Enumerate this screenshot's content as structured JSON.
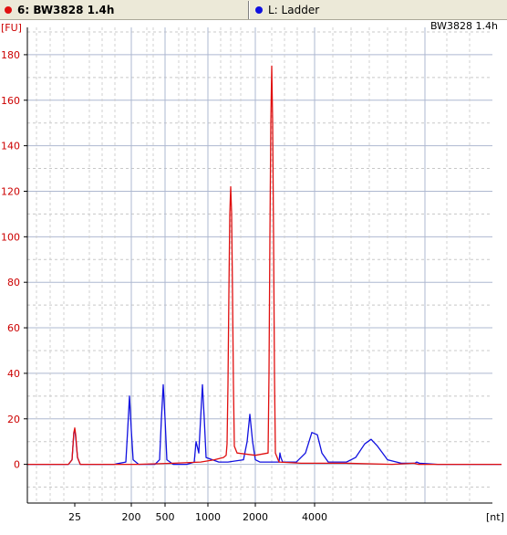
{
  "legend": {
    "sample": {
      "label": "6: BW3828 1.4h",
      "color": "#e01010"
    },
    "ladder": {
      "label": "L: Ladder",
      "color": "#1010e0"
    }
  },
  "chart_data": {
    "type": "line",
    "title": "BW3828 1.4h",
    "ylabel": "[FU]",
    "xlabel": "[nt]",
    "ylim": [
      -17,
      192
    ],
    "yticks": [
      0,
      20,
      40,
      60,
      80,
      100,
      120,
      140,
      160,
      180
    ],
    "xticks": [
      "25",
      "200",
      "500",
      "1000",
      "2000",
      "4000"
    ],
    "grid": true,
    "series": [
      {
        "name": "6: BW3828 1.4h",
        "color": "#e01010",
        "points": [
          [
            0,
            0
          ],
          [
            45,
            0
          ],
          [
            49,
            2
          ],
          [
            51,
            14
          ],
          [
            52,
            16
          ],
          [
            53,
            13
          ],
          [
            55,
            3
          ],
          [
            58,
            0
          ],
          [
            120,
            0
          ],
          [
            160,
            0.5
          ],
          [
            190,
            1
          ],
          [
            205,
            2
          ],
          [
            215,
            3
          ],
          [
            218,
            4
          ],
          [
            219,
            9
          ],
          [
            220,
            35
          ],
          [
            221,
            75
          ],
          [
            222,
            110
          ],
          [
            223,
            122
          ],
          [
            224,
            110
          ],
          [
            225,
            75
          ],
          [
            226,
            35
          ],
          [
            227,
            8
          ],
          [
            230,
            5
          ],
          [
            250,
            4
          ],
          [
            264,
            5
          ],
          [
            265,
            40
          ],
          [
            266,
            100
          ],
          [
            267,
            150
          ],
          [
            268,
            175
          ],
          [
            269,
            150
          ],
          [
            270,
            100
          ],
          [
            271,
            40
          ],
          [
            272,
            5
          ],
          [
            276,
            1
          ],
          [
            300,
            0.5
          ],
          [
            350,
            0.5
          ],
          [
            400,
            0
          ],
          [
            424,
            0.5
          ],
          [
            429,
            0
          ],
          [
            520,
            0
          ]
        ]
      },
      {
        "name": "L: Ladder",
        "color": "#1010e0",
        "points": [
          [
            0,
            0
          ],
          [
            45,
            0
          ],
          [
            49,
            2
          ],
          [
            51,
            14
          ],
          [
            52,
            15
          ],
          [
            53,
            12
          ],
          [
            55,
            3
          ],
          [
            58,
            0
          ],
          [
            95,
            0
          ],
          [
            108,
            1
          ],
          [
            110,
            15
          ],
          [
            112,
            30
          ],
          [
            114,
            15
          ],
          [
            116,
            2
          ],
          [
            122,
            0
          ],
          [
            140,
            0
          ],
          [
            145,
            2
          ],
          [
            147,
            20
          ],
          [
            149,
            35
          ],
          [
            151,
            20
          ],
          [
            153,
            2
          ],
          [
            160,
            0
          ],
          [
            175,
            0
          ],
          [
            183,
            1
          ],
          [
            185,
            10
          ],
          [
            188,
            5
          ],
          [
            190,
            20
          ],
          [
            192,
            35
          ],
          [
            194,
            20
          ],
          [
            196,
            3
          ],
          [
            210,
            1
          ],
          [
            220,
            1
          ],
          [
            237,
            2
          ],
          [
            241,
            10
          ],
          [
            244,
            22
          ],
          [
            247,
            10
          ],
          [
            250,
            2
          ],
          [
            255,
            1
          ],
          [
            270,
            1
          ],
          [
            276,
            1
          ],
          [
            277,
            5
          ],
          [
            278,
            3
          ],
          [
            280,
            1
          ],
          [
            295,
            1
          ],
          [
            305,
            5
          ],
          [
            312,
            14
          ],
          [
            318,
            13
          ],
          [
            323,
            5
          ],
          [
            330,
            1
          ],
          [
            350,
            1
          ],
          [
            360,
            3
          ],
          [
            370,
            9
          ],
          [
            377,
            11
          ],
          [
            384,
            8
          ],
          [
            395,
            2
          ],
          [
            410,
            0.5
          ],
          [
            425,
            0.5
          ],
          [
            427,
            1
          ],
          [
            430,
            0.5
          ],
          [
            450,
            0
          ],
          [
            520,
            0
          ]
        ]
      }
    ]
  }
}
